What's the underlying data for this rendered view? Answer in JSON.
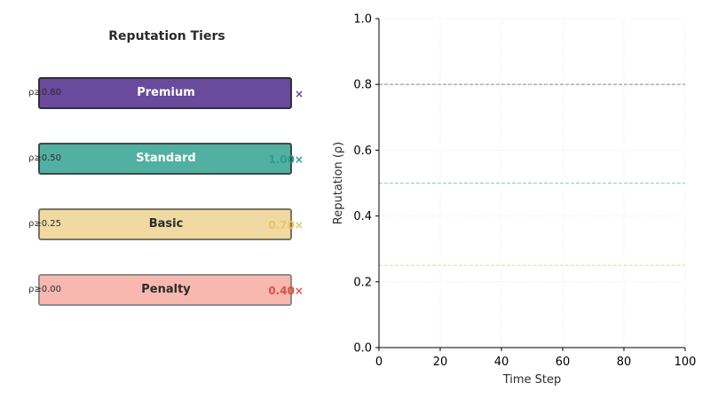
{
  "panel": {
    "title": "Reputation Tiers"
  },
  "tiers": [
    {
      "name": "Premium",
      "threshold": "ρ≥0.80",
      "multiplier": "×",
      "fill": "#6a4a9c",
      "border": "#2e2e3a",
      "text": "#ffffff",
      "accent": "#6a4a9c"
    },
    {
      "name": "Standard",
      "threshold": "ρ≥0.50",
      "multiplier": "1.00×",
      "fill": "#52b0a3",
      "border": "#3a4a48",
      "text": "#ffffff",
      "accent": "#2a9d8f"
    },
    {
      "name": "Basic",
      "threshold": "ρ≥0.25",
      "multiplier": "0.70×",
      "fill": "#f1d9a2",
      "border": "#7a7560",
      "text": "#2b2b2b",
      "accent": "#e9c46a"
    },
    {
      "name": "Penalty",
      "threshold": "ρ≥0.00",
      "multiplier": "0.40×",
      "fill": "#f8b8b0",
      "border": "#8f8a88",
      "text": "#2b2b2b",
      "accent": "#e0503a"
    }
  ],
  "chart_data": {
    "type": "line",
    "xlabel": "Time Step",
    "ylabel": "Reputation (ρ)",
    "xlim": [
      0,
      100
    ],
    "ylim": [
      0,
      1
    ],
    "xticks": [
      0,
      20,
      40,
      60,
      80,
      100
    ],
    "yticks": [
      0.0,
      0.2,
      0.4,
      0.6,
      0.8,
      1.0
    ],
    "grid": true,
    "reference_lines": [
      {
        "y": 0.8,
        "color": "#9b8fc4"
      },
      {
        "y": 0.5,
        "color": "#9fd2c6"
      },
      {
        "y": 0.25,
        "color": "#f3dcb6"
      }
    ],
    "series": []
  }
}
